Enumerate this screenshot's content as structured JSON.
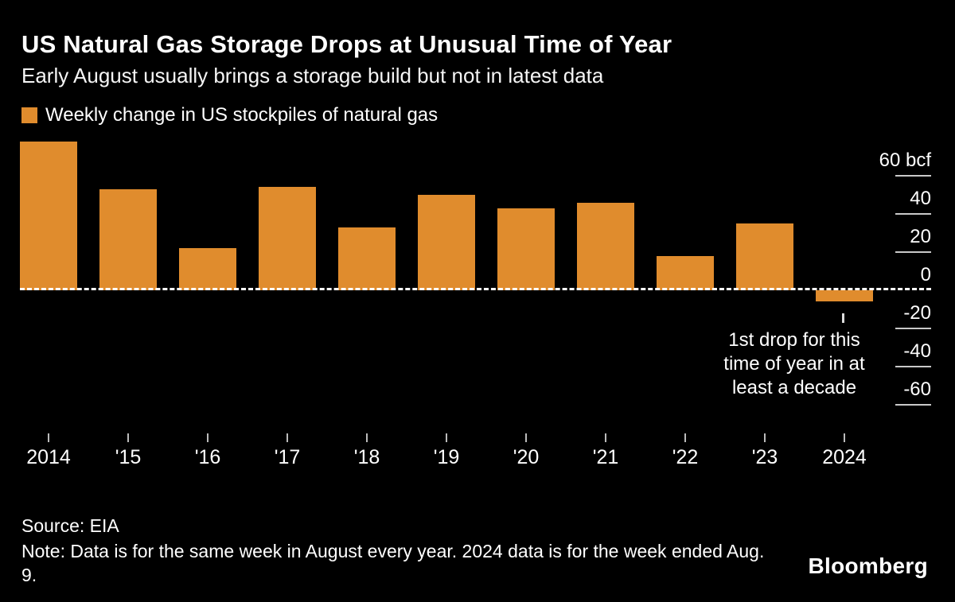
{
  "header": {
    "title": "US Natural Gas Storage Drops at Unusual Time of Year",
    "subtitle": "Early August usually brings a storage build but not in latest data"
  },
  "legend": {
    "label": "Weekly change in US stockpiles of natural gas",
    "color": "#E08C2D"
  },
  "chart_data": {
    "type": "bar",
    "title": "US Natural Gas Storage Drops at Unusual Time of Year",
    "subtitle": "Early August usually brings a storage build but not in latest data",
    "legend": "Weekly change in US stockpiles of natural gas",
    "categories": [
      "2014",
      "'15",
      "'16",
      "'17",
      "'18",
      "'19",
      "'20",
      "'21",
      "'22",
      "'23",
      "2024"
    ],
    "values": [
      78,
      53,
      22,
      54,
      33,
      50,
      43,
      46,
      18,
      35,
      -6
    ],
    "unit": "bcf",
    "bar_color": "#E08C2D",
    "y_ticks": [
      60,
      40,
      20,
      0,
      -20,
      -40,
      -60
    ],
    "y_tick_labels": [
      "60 bcf",
      "40",
      "20",
      "0",
      "-20",
      "-40",
      "-60"
    ],
    "ylim": [
      -71,
      81
    ],
    "grid": "right-side tick dashes only",
    "zero_line": "dashed horizontal line at 0",
    "legend_position": "top-left",
    "annotation": {
      "lines": [
        "1st drop for this",
        "time of year in at",
        "least a decade"
      ],
      "target_category": "2024"
    }
  },
  "footer": {
    "source": "Source: EIA",
    "note": "Note: Data is for the same week in August every year. 2024 data is for the week ended Aug. 9.",
    "brand": "Bloomberg"
  }
}
